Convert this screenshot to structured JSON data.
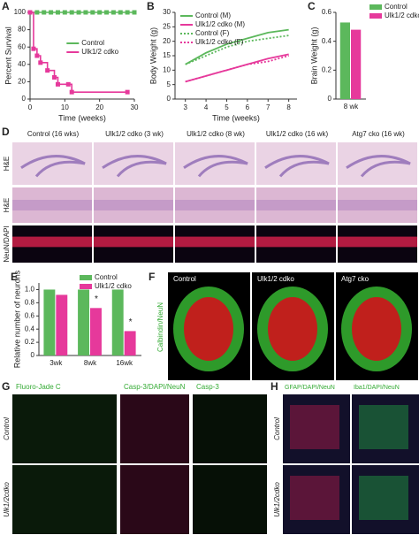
{
  "chart_data": [
    {
      "panel": "A",
      "type": "line",
      "step": true,
      "xlabel": "Time (weeks)",
      "ylabel": "Percent Survival",
      "xlim": [
        0,
        30
      ],
      "xticks": [
        0,
        10,
        20,
        30
      ],
      "ylim": [
        0,
        100
      ],
      "yticks": [
        0,
        20,
        40,
        60,
        80,
        100
      ],
      "legend": "center right",
      "series": [
        {
          "name": "Control",
          "color": "#5cb85c",
          "marker": "square",
          "x": [
            0,
            2,
            4,
            6,
            8,
            10,
            12,
            14,
            16,
            18,
            20,
            22,
            24,
            26,
            28,
            30
          ],
          "values": [
            100,
            100,
            100,
            100,
            100,
            100,
            100,
            100,
            100,
            100,
            100,
            100,
            100,
            100,
            100,
            100
          ]
        },
        {
          "name": "Ulk1/2 cdko",
          "color": "#e6399b",
          "marker": "square",
          "x": [
            0,
            1,
            2,
            3,
            5,
            7,
            8,
            11,
            12,
            28
          ],
          "values": [
            100,
            58,
            50,
            42,
            33,
            25,
            17,
            17,
            8,
            8
          ]
        }
      ]
    },
    {
      "panel": "B",
      "type": "line",
      "step": false,
      "xlabel": "Time (weeks)",
      "ylabel": "Body Weight (g)",
      "xlim": [
        2.5,
        8.4
      ],
      "xticks": [
        3,
        4,
        5,
        6,
        7,
        8
      ],
      "ylim": [
        0,
        30
      ],
      "yticks": [
        0,
        5,
        10,
        15,
        20,
        25,
        30
      ],
      "legend": "upper left",
      "series": [
        {
          "name": "Control (M)",
          "color": "#5cb85c",
          "dash": false,
          "x": [
            3,
            4,
            5,
            6,
            7,
            8
          ],
          "values": [
            12,
            16,
            19,
            21,
            23,
            24
          ]
        },
        {
          "name": "Ulk1/2 cdko (M)",
          "color": "#e6399b",
          "dash": false,
          "x": [
            3,
            4,
            5,
            6,
            7,
            8
          ],
          "values": [
            6,
            8,
            10,
            12,
            14,
            15.5
          ]
        },
        {
          "name": "Control (F)",
          "color": "#5cb85c",
          "dash": true,
          "x": [
            3,
            4,
            5,
            6,
            7,
            8
          ],
          "values": [
            12,
            15,
            18,
            20,
            21,
            22
          ]
        },
        {
          "name": "Ulk1/2 cdko (F)",
          "color": "#e6399b",
          "dash": true,
          "x": [
            3,
            4,
            5,
            6,
            7,
            8
          ],
          "values": [
            6,
            8,
            10,
            12,
            13,
            15
          ]
        }
      ]
    },
    {
      "panel": "C",
      "type": "bar",
      "ylabel": "Brain Weight (g)",
      "categories": [
        "8 wk"
      ],
      "ylim": [
        0,
        0.6
      ],
      "yticks": [
        0,
        0.2,
        0.4,
        0.6
      ],
      "legend": "outside right",
      "series": [
        {
          "name": "Control",
          "color": "#5cb85c",
          "values": [
            0.53
          ]
        },
        {
          "name": "Ulk1/2 cdko",
          "color": "#e6399b",
          "values": [
            0.48
          ]
        }
      ]
    },
    {
      "panel": "E",
      "type": "bar",
      "ylabel": "Relative number of neurons",
      "categories": [
        "3wk",
        "8wk",
        "16wk"
      ],
      "ylim": [
        0,
        1.1
      ],
      "yticks": [
        0,
        0.2,
        0.4,
        0.6,
        0.8,
        {
          "value": 1,
          "label": "1.0"
        }
      ],
      "legend": "upper right",
      "series": [
        {
          "name": "Control",
          "color": "#5cb85c",
          "values": [
            1,
            1,
            1
          ]
        },
        {
          "name": "Ulk1/2 cdko",
          "color": "#e6399b",
          "values": [
            0.92,
            0.72,
            0.37
          ],
          "significance": [
            null,
            "*",
            "*"
          ]
        }
      ]
    }
  ],
  "panels": {
    "D": {
      "letter": "D",
      "columns": [
        "Control (16 wks)",
        "Ulk1/2 cdko (3 wk)",
        "Ulk1/2 cdko (8 wk)",
        "Ulk1/2 cdko (16 wk)",
        "Atg7 cko (16 wk)"
      ],
      "rows": [
        "H&E",
        "H&E",
        "NeuN/DAPI"
      ]
    },
    "F": {
      "letter": "F",
      "columns": [
        "Control",
        "Ulk1/2 cdko",
        "Atg7 cko"
      ],
      "side": "Calbindin/NeuN"
    },
    "G": {
      "letter": "G",
      "columns": [
        "Fluoro-Jade C",
        "Casp-3/DAPI/NeuN",
        "Casp-3"
      ],
      "rows": [
        "Control",
        "Ulk1/2cdko"
      ]
    },
    "H": {
      "letter": "H",
      "columns": [
        "GFAP/DAPI/NeuN",
        "Iba1/DAPI/NeuN"
      ],
      "rows": [
        "Control",
        "Ulk1/2cdko"
      ]
    }
  }
}
